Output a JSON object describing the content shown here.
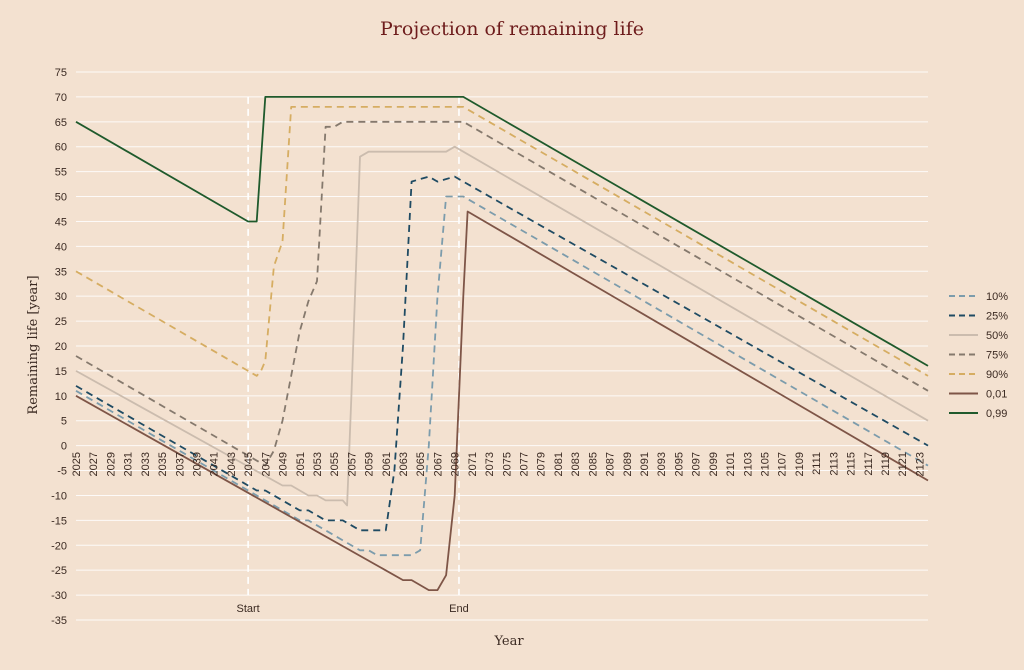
{
  "chart_data": {
    "type": "line",
    "title": "Projection of remaining life",
    "xlabel": "Year",
    "ylabel": "Remaining life [year]",
    "xlim": [
      2025,
      2124
    ],
    "ylim": [
      -35,
      75
    ],
    "y_ticks": [
      75,
      70,
      65,
      60,
      55,
      50,
      45,
      40,
      35,
      30,
      25,
      20,
      15,
      10,
      5,
      0,
      -5,
      -10,
      -15,
      -20,
      -25,
      -30,
      -35
    ],
    "x_ticks": [
      2025,
      2027,
      2029,
      2031,
      2033,
      2035,
      2037,
      2039,
      2041,
      2043,
      2045,
      2047,
      2049,
      2051,
      2053,
      2055,
      2057,
      2059,
      2061,
      2063,
      2065,
      2067,
      2069,
      2071,
      2073,
      2075,
      2077,
      2079,
      2081,
      2083,
      2085,
      2087,
      2089,
      2091,
      2093,
      2095,
      2097,
      2099,
      2101,
      2103,
      2105,
      2107,
      2109,
      2111,
      2113,
      2115,
      2117,
      2119,
      2121,
      2123
    ],
    "grid": true,
    "legend_position": "right",
    "markers": [
      {
        "label": "Start",
        "x": 2045
      },
      {
        "label": "End",
        "x": 2069.5
      }
    ],
    "series": [
      {
        "name": "10%",
        "color": "#7c9cac",
        "dash": "dashed",
        "points": [
          [
            2025,
            11
          ],
          [
            2045,
            -9
          ],
          [
            2051,
            -15
          ],
          [
            2052,
            -15
          ],
          [
            2058,
            -21
          ],
          [
            2059,
            -21
          ],
          [
            2060,
            -22
          ],
          [
            2064,
            -22
          ],
          [
            2065,
            -21
          ],
          [
            2066,
            0
          ],
          [
            2067,
            30
          ],
          [
            2068,
            50
          ],
          [
            2069,
            50
          ],
          [
            2070,
            50
          ],
          [
            2124,
            -4
          ]
        ]
      },
      {
        "name": "25%",
        "color": "#1f4b63",
        "dash": "dashed",
        "points": [
          [
            2025,
            12
          ],
          [
            2046,
            -9
          ],
          [
            2047,
            -9
          ],
          [
            2051,
            -13
          ],
          [
            2052,
            -13
          ],
          [
            2054,
            -15
          ],
          [
            2056,
            -15
          ],
          [
            2058,
            -17
          ],
          [
            2061,
            -17
          ],
          [
            2062,
            -5
          ],
          [
            2063,
            20
          ],
          [
            2064,
            53
          ],
          [
            2066,
            54
          ],
          [
            2067,
            53
          ],
          [
            2069,
            54
          ],
          [
            2070,
            53
          ],
          [
            2124,
            0
          ]
        ]
      },
      {
        "name": "50%",
        "color": "#cbbcae",
        "dash": "solid",
        "points": [
          [
            2025,
            15
          ],
          [
            2049,
            -8
          ],
          [
            2050,
            -8
          ],
          [
            2052,
            -10
          ],
          [
            2053,
            -10
          ],
          [
            2054,
            -11
          ],
          [
            2056,
            -11
          ],
          [
            2056.5,
            -12
          ],
          [
            2057,
            10
          ],
          [
            2058,
            58
          ],
          [
            2059,
            59
          ],
          [
            2068,
            59
          ],
          [
            2069,
            60
          ],
          [
            2124,
            5
          ]
        ]
      },
      {
        "name": "75%",
        "color": "#85796d",
        "dash": "dashed",
        "points": [
          [
            2025,
            18
          ],
          [
            2045,
            -2
          ],
          [
            2047,
            -4
          ],
          [
            2048,
            -1
          ],
          [
            2049,
            5
          ],
          [
            2051,
            23
          ],
          [
            2052,
            29
          ],
          [
            2053,
            33
          ],
          [
            2054,
            64
          ],
          [
            2055,
            64
          ],
          [
            2056,
            65
          ],
          [
            2070,
            65
          ],
          [
            2124,
            11
          ]
        ]
      },
      {
        "name": "90%",
        "color": "#d6ad62",
        "dash": "dashed",
        "points": [
          [
            2025,
            35
          ],
          [
            2045,
            15
          ],
          [
            2046,
            14
          ],
          [
            2046.5,
            15
          ],
          [
            2047,
            17
          ],
          [
            2048,
            36
          ],
          [
            2049,
            41
          ],
          [
            2050,
            68
          ],
          [
            2070,
            68
          ],
          [
            2124,
            14
          ]
        ]
      },
      {
        "name": "0,01",
        "color": "#7e5547",
        "dash": "solid",
        "points": [
          [
            2025,
            10
          ],
          [
            2063,
            -27
          ],
          [
            2064,
            -27
          ],
          [
            2066,
            -29
          ],
          [
            2067,
            -29
          ],
          [
            2068,
            -26
          ],
          [
            2069,
            -10
          ],
          [
            2070,
            30
          ],
          [
            2070.5,
            47
          ],
          [
            2124,
            -7
          ]
        ]
      },
      {
        "name": "0,99",
        "color": "#1f5a2c",
        "dash": "solid",
        "points": [
          [
            2025,
            65
          ],
          [
            2045,
            45
          ],
          [
            2046,
            45
          ],
          [
            2047,
            70
          ],
          [
            2070,
            70
          ],
          [
            2124,
            16
          ]
        ]
      }
    ]
  }
}
